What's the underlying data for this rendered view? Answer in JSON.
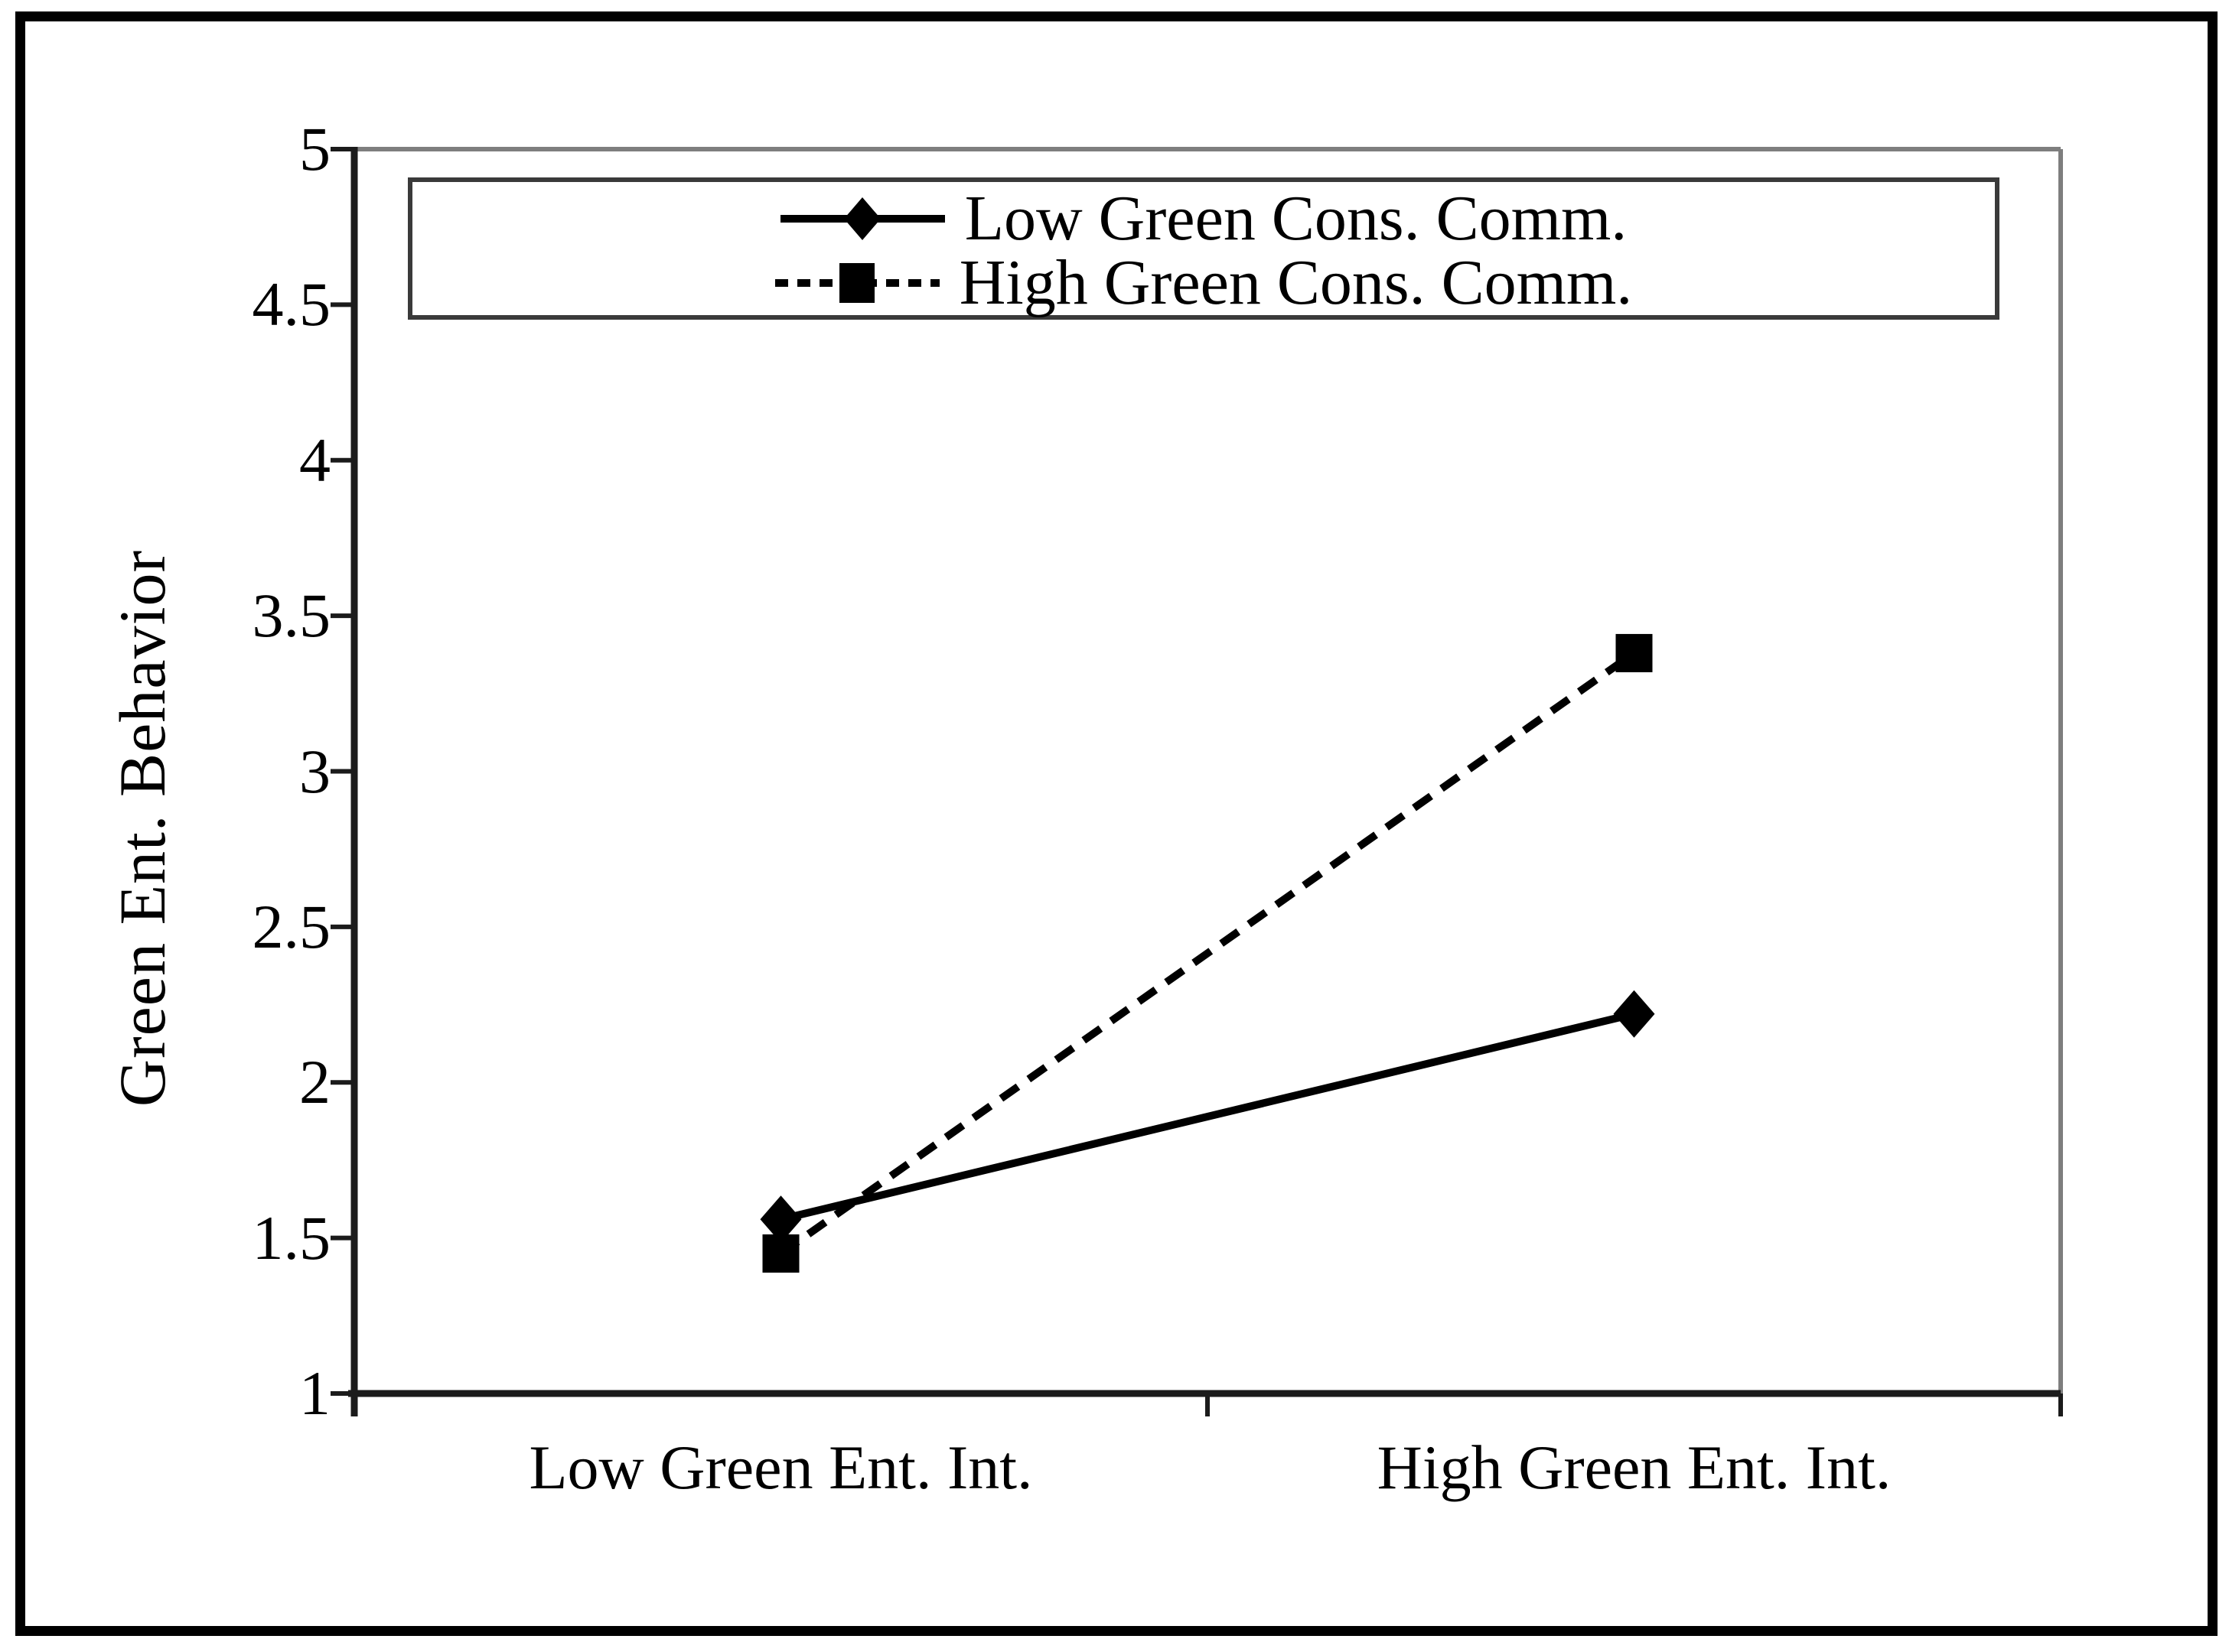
{
  "figure": {
    "background": "#ffffff",
    "frame_color": "#000000"
  },
  "chart_data": {
    "type": "line",
    "title": "",
    "xlabel": "",
    "ylabel": "Green Ent. Behavior",
    "categories": [
      "Low Green Ent. Int.",
      "High Green Ent. Int."
    ],
    "series": [
      {
        "name": "Low Green Cons. Comm.",
        "line_style": "solid",
        "marker": "diamond",
        "color": "#000000",
        "values": [
          1.56,
          2.22
        ]
      },
      {
        "name": "High Green Cons. Comm.",
        "line_style": "dashed",
        "marker": "square",
        "color": "#000000",
        "values": [
          1.45,
          3.38
        ]
      }
    ],
    "y_axis": {
      "min": 1,
      "max": 5,
      "step": 0.5,
      "tick_labels": [
        "1",
        "1.5",
        "2",
        "2.5",
        "3",
        "3.5",
        "4",
        "4.5",
        "5"
      ]
    },
    "legend": {
      "position": "top-center",
      "border": true
    },
    "grid": false,
    "colors": {
      "series": "#000000",
      "axis": "#1b1b1b",
      "plot_border": "#7e7e7e",
      "legend_border": "#3a3a3a"
    }
  }
}
